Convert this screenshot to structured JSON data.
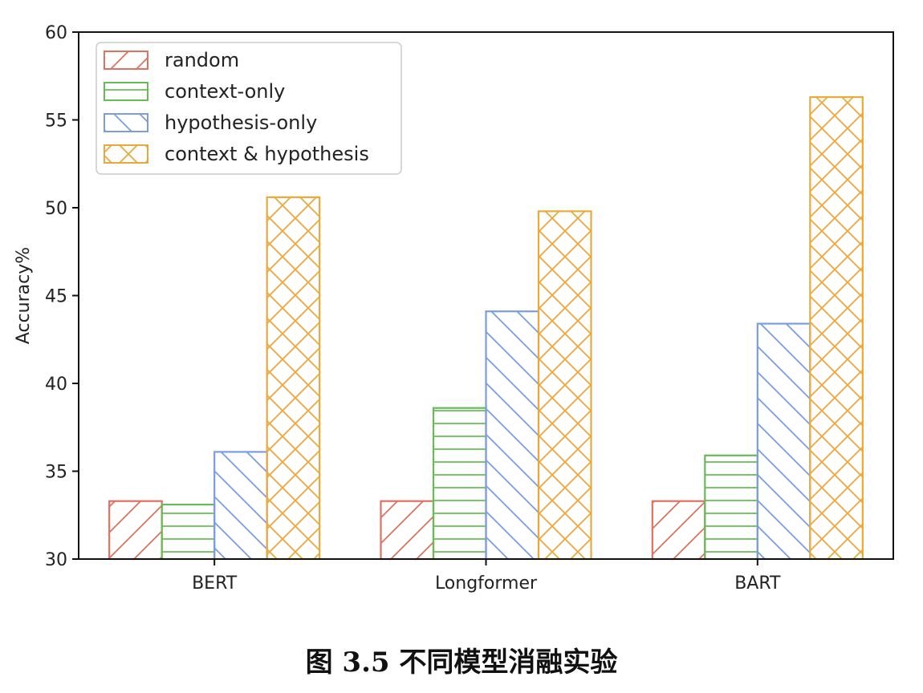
{
  "caption": "图 3.5 不同模型消融实验",
  "chart_data": {
    "type": "bar",
    "ylabel": "Accuracy%",
    "xlabel": "",
    "ylim": [
      30,
      60
    ],
    "yticks": [
      30,
      35,
      40,
      45,
      50,
      55,
      60
    ],
    "categories": [
      "BERT",
      "Longformer",
      "BART"
    ],
    "grid": false,
    "legend_position": "top-left",
    "series": [
      {
        "name": "random",
        "values": [
          33.3,
          33.3,
          33.3
        ],
        "color": "#e07060",
        "hatch": "forward-diagonal"
      },
      {
        "name": "context-only",
        "values": [
          33.1,
          38.6,
          35.9
        ],
        "color": "#66bb55",
        "hatch": "horizontal"
      },
      {
        "name": "hypothesis-only",
        "values": [
          36.1,
          44.1,
          43.4
        ],
        "color": "#7a9de0",
        "hatch": "back-diagonal"
      },
      {
        "name": "context & hypothesis",
        "values": [
          50.6,
          49.8,
          56.3
        ],
        "color": "#e8aa3a",
        "hatch": "crosshatch"
      }
    ]
  }
}
